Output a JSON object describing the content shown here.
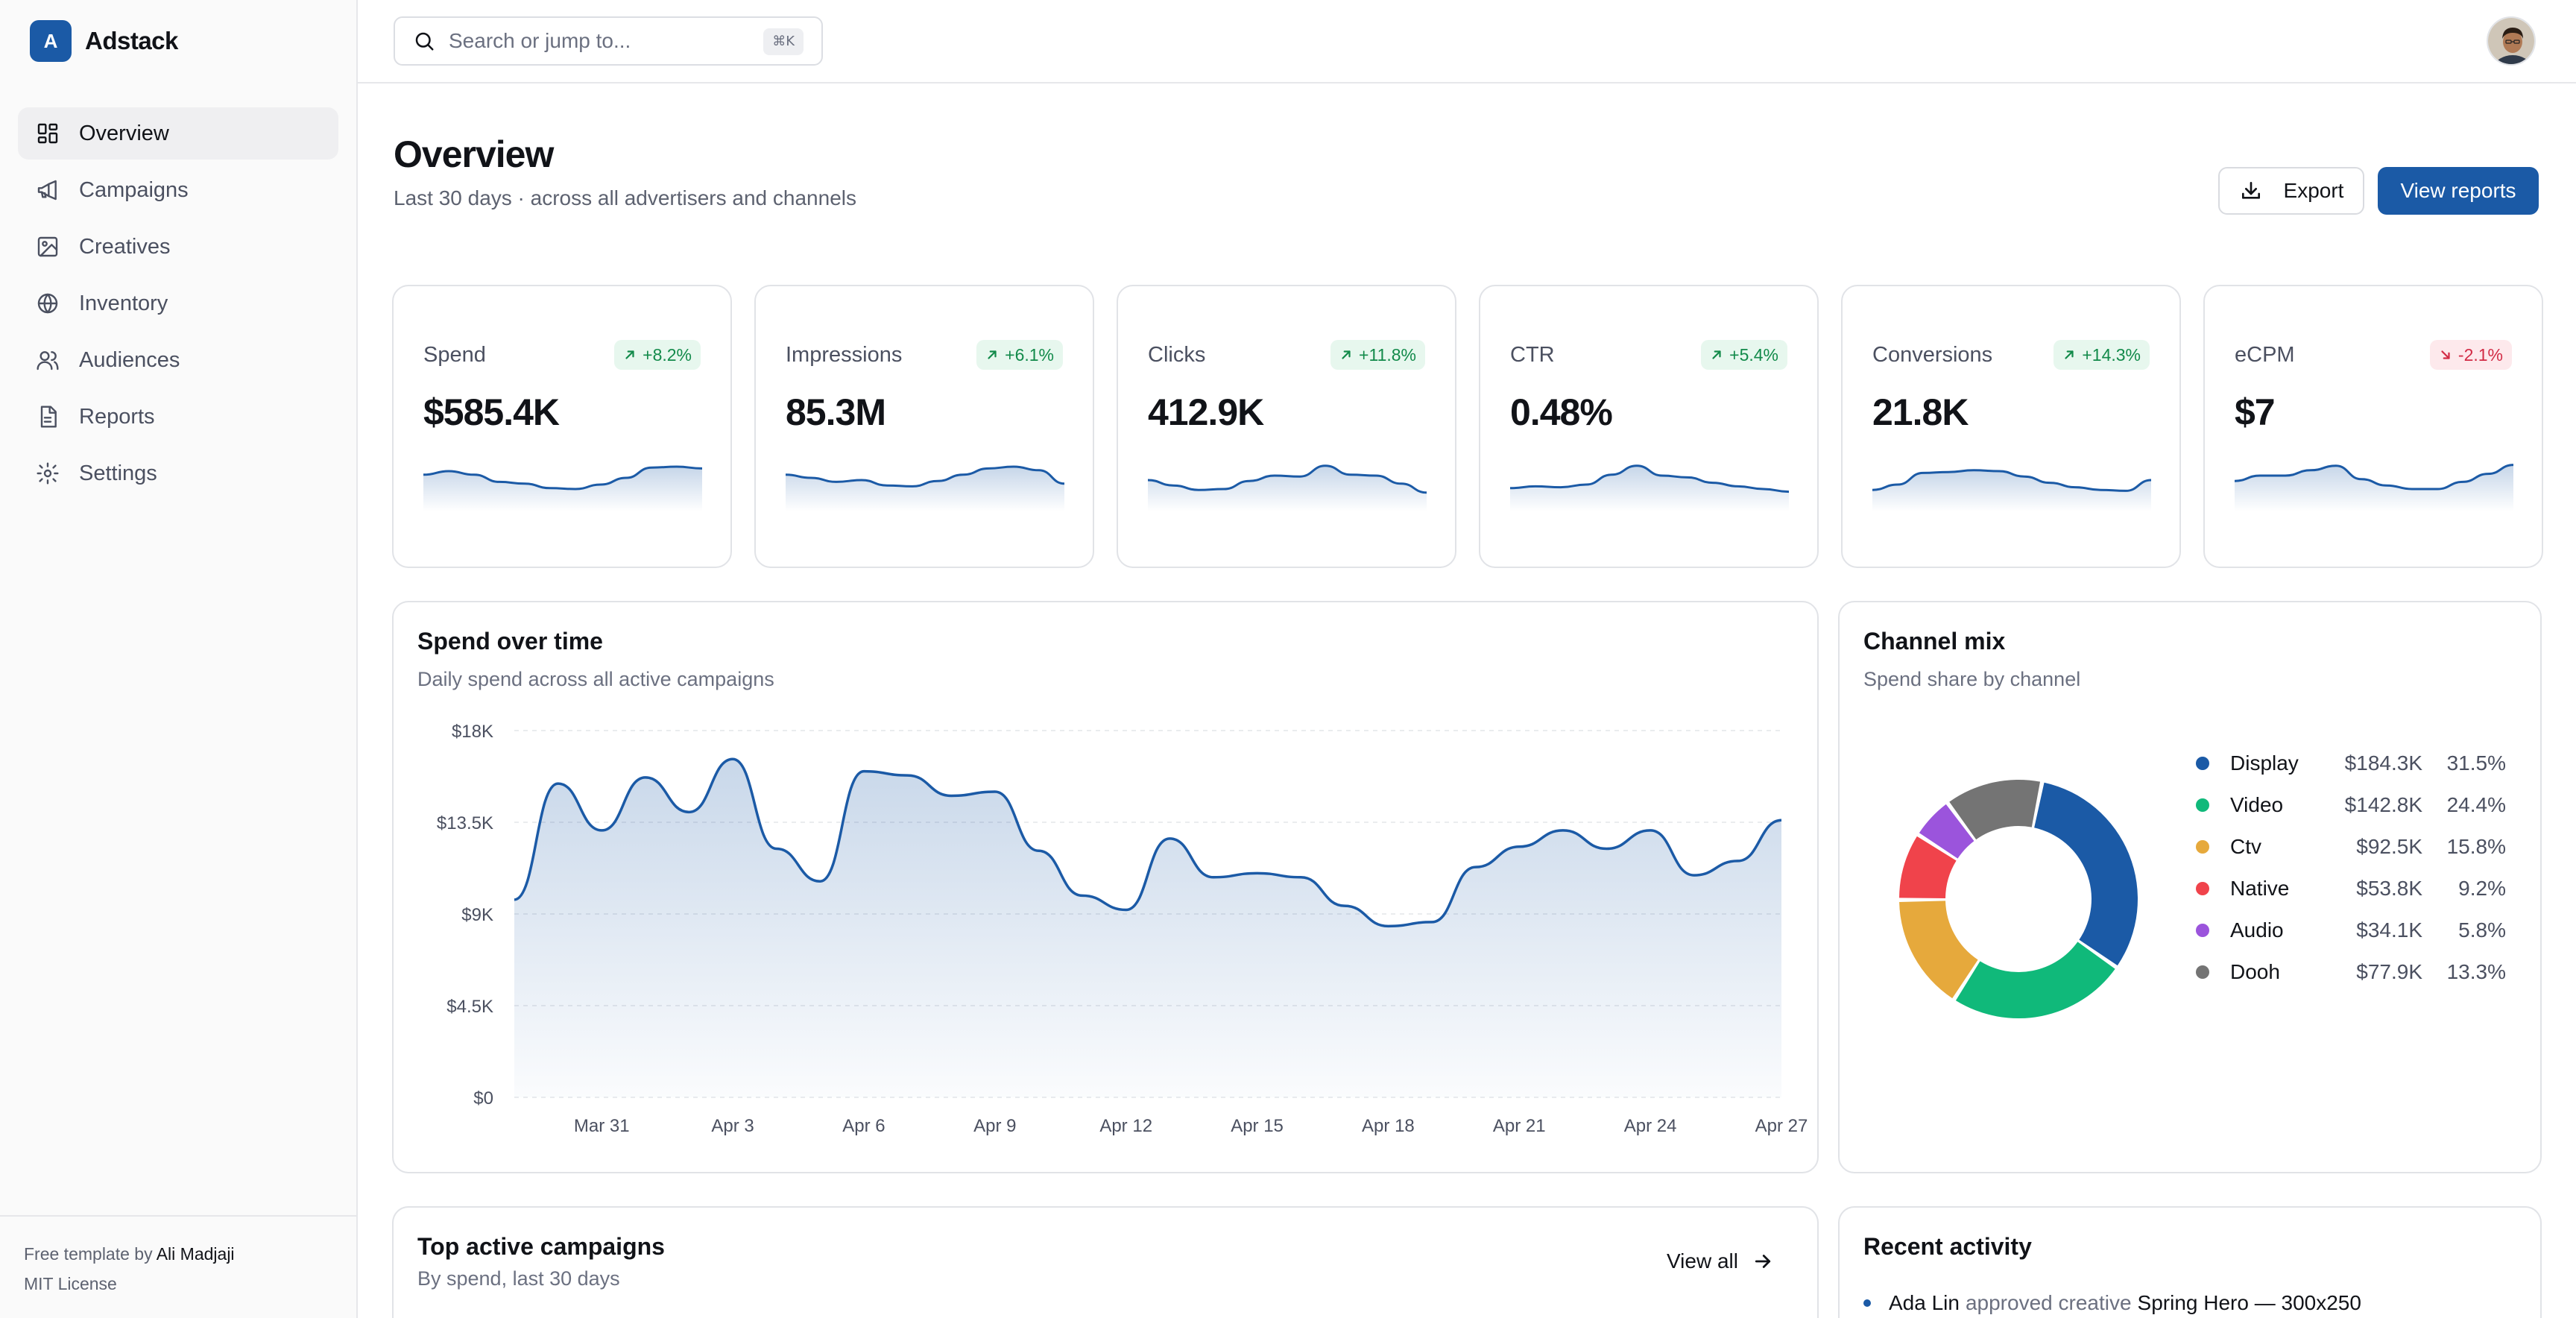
{
  "brand": {
    "logo_letter": "A",
    "name": "Adstack"
  },
  "nav": [
    {
      "label": "Overview",
      "icon": "grid-icon",
      "active": true
    },
    {
      "label": "Campaigns",
      "icon": "megaphone-icon"
    },
    {
      "label": "Creatives",
      "icon": "image-icon"
    },
    {
      "label": "Inventory",
      "icon": "globe-icon"
    },
    {
      "label": "Audiences",
      "icon": "users-icon"
    },
    {
      "label": "Reports",
      "icon": "file-icon"
    },
    {
      "label": "Settings",
      "icon": "gear-icon"
    }
  ],
  "footer": {
    "prefix": "Free template by",
    "author": "Ali Madjaji",
    "license": "MIT License"
  },
  "search": {
    "placeholder": "Search or jump to...",
    "shortcut": "⌘K"
  },
  "header": {
    "title": "Overview",
    "subtitle": "Last 30 days · across all advertisers and channels",
    "export_label": "Export",
    "reports_label": "View reports"
  },
  "kpis": [
    {
      "label": "Spend",
      "value": "$585.4K",
      "delta": "+8.2%",
      "trend": "up",
      "spark": [
        0.62,
        0.7,
        0.62,
        0.46,
        0.42,
        0.32,
        0.3,
        0.4,
        0.55,
        0.78,
        0.8,
        0.76
      ]
    },
    {
      "label": "Impressions",
      "value": "85.3M",
      "delta": "+6.1%",
      "trend": "up",
      "spark": [
        0.62,
        0.55,
        0.46,
        0.5,
        0.38,
        0.36,
        0.48,
        0.62,
        0.76,
        0.8,
        0.72,
        0.42
      ]
    },
    {
      "label": "Clicks",
      "value": "412.9K",
      "delta": "+11.8%",
      "trend": "up",
      "spark": [
        0.5,
        0.38,
        0.28,
        0.3,
        0.48,
        0.6,
        0.58,
        0.82,
        0.62,
        0.6,
        0.42,
        0.22
      ]
    },
    {
      "label": "CTR",
      "value": "0.48%",
      "delta": "+5.4%",
      "trend": "up",
      "spark": [
        0.32,
        0.36,
        0.34,
        0.4,
        0.62,
        0.82,
        0.6,
        0.56,
        0.44,
        0.36,
        0.3,
        0.24
      ]
    },
    {
      "label": "Conversions",
      "value": "21.8K",
      "delta": "+14.3%",
      "trend": "up",
      "spark": [
        0.28,
        0.4,
        0.66,
        0.68,
        0.72,
        0.7,
        0.58,
        0.44,
        0.34,
        0.28,
        0.26,
        0.5
      ]
    },
    {
      "label": "eCPM",
      "value": "$7",
      "delta": "-2.1%",
      "trend": "down",
      "spark": [
        0.48,
        0.6,
        0.6,
        0.72,
        0.82,
        0.52,
        0.38,
        0.3,
        0.3,
        0.46,
        0.64,
        0.84
      ]
    }
  ],
  "spend_panel": {
    "title": "Spend over time",
    "subtitle": "Daily spend across all active campaigns"
  },
  "chart_data": {
    "type": "area",
    "x": [
      "Mar 29",
      "Mar 30",
      "Mar 31",
      "Apr 1",
      "Apr 2",
      "Apr 3",
      "Apr 4",
      "Apr 5",
      "Apr 6",
      "Apr 7",
      "Apr 8",
      "Apr 9",
      "Apr 10",
      "Apr 11",
      "Apr 12",
      "Apr 13",
      "Apr 14",
      "Apr 15",
      "Apr 16",
      "Apr 17",
      "Apr 18",
      "Apr 19",
      "Apr 20",
      "Apr 21",
      "Apr 22",
      "Apr 23",
      "Apr 24",
      "Apr 25",
      "Apr 26",
      "Apr 27"
    ],
    "series": [
      {
        "values": [
          9700,
          15400,
          13100,
          15700,
          14000,
          16600,
          12200,
          10600,
          16000,
          15800,
          14800,
          15000,
          12100,
          9900,
          9200,
          12700,
          10800,
          11000,
          10800,
          9400,
          8400,
          8600,
          11300,
          12300,
          13100,
          12200,
          13100,
          10900,
          11600,
          13600
        ]
      }
    ],
    "xticks": [
      "Mar 31",
      "Apr 3",
      "Apr 6",
      "Apr 9",
      "Apr 12",
      "Apr 15",
      "Apr 18",
      "Apr 21",
      "Apr 24",
      "Apr 27"
    ],
    "yticks": [
      "$0",
      "$4.5K",
      "$9K",
      "$13.5K",
      "$18K"
    ],
    "ylim": [
      0,
      18000
    ],
    "grid": true,
    "color": "#1b5aa6"
  },
  "channel_panel": {
    "title": "Channel mix",
    "subtitle": "Spend share by channel",
    "channels": [
      {
        "name": "Display",
        "value": "$184.3K",
        "pct": "31.5%",
        "share": 31.5,
        "color": "#1b5aa6"
      },
      {
        "name": "Video",
        "value": "$142.8K",
        "pct": "24.4%",
        "share": 24.4,
        "color": "#10b97a"
      },
      {
        "name": "Ctv",
        "value": "$92.5K",
        "pct": "15.8%",
        "share": 15.8,
        "color": "#e6a93c"
      },
      {
        "name": "Native",
        "value": "$53.8K",
        "pct": "9.2%",
        "share": 9.2,
        "color": "#f0434b"
      },
      {
        "name": "Audio",
        "value": "$34.1K",
        "pct": "5.8%",
        "share": 5.8,
        "color": "#9b54dc"
      },
      {
        "name": "Dooh",
        "value": "$77.9K",
        "pct": "13.3%",
        "share": 13.3,
        "color": "#747474"
      }
    ]
  },
  "campaigns_panel": {
    "title": "Top active campaigns",
    "subtitle": "By spend, last 30 days",
    "view_all": "View all"
  },
  "activity_panel": {
    "title": "Recent activity",
    "items": [
      {
        "actor": "Ada Lin",
        "action": "approved creative",
        "object": "Spring Hero — 300x250"
      }
    ]
  },
  "colors": {
    "accent": "#1b5aa6",
    "up": "#128a4a",
    "down": "#d22b45"
  }
}
